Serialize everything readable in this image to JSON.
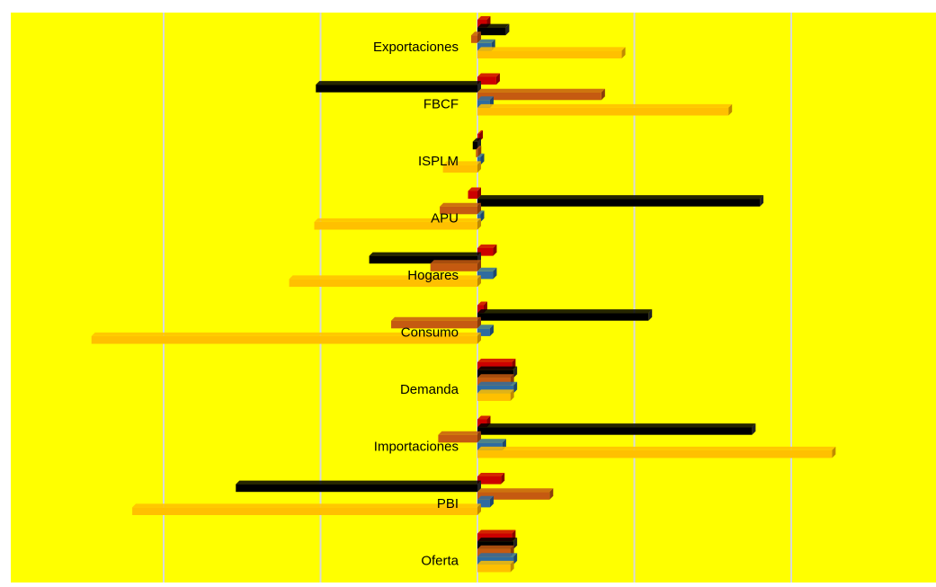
{
  "chart_data": {
    "type": "bar",
    "orientation": "horizontal",
    "style": "3d-clustered",
    "grid": "vertical lines",
    "legend": "none",
    "categories": [
      "Exportaciones",
      "FBCF",
      "ISPLM",
      "APU",
      "Hogares",
      "Consumo",
      "Demanda",
      "Importaciones",
      "PBI",
      "Oferta"
    ],
    "xlim": [
      -30,
      30
    ],
    "series": [
      {
        "color": "#cc0000",
        "side": "#880000",
        "values": [
          0.6,
          1.2,
          0.1,
          -0.6,
          1.0,
          0.4,
          2.2,
          0.6,
          1.5,
          2.2
        ]
      },
      {
        "color": "#000000",
        "side": "#222222",
        "values": [
          1.8,
          -10.3,
          -0.3,
          18.0,
          -6.9,
          10.9,
          2.3,
          17.5,
          -15.4,
          2.3
        ]
      },
      {
        "color": "#c55a11",
        "side": "#8a3d0a",
        "values": [
          -0.4,
          7.9,
          -0.1,
          -2.4,
          -3.0,
          -5.5,
          2.1,
          -2.5,
          4.6,
          2.1
        ]
      },
      {
        "color": "#2e6ca0",
        "side": "#1d4870",
        "values": [
          0.9,
          0.8,
          0.2,
          0.2,
          1.0,
          0.8,
          2.3,
          1.6,
          0.8,
          2.3
        ]
      },
      {
        "color": "#ffc000",
        "side": "#c08a00",
        "values": [
          9.2,
          16.0,
          -2.2,
          -10.4,
          -12.0,
          -24.6,
          2.1,
          22.6,
          -22.0,
          2.1
        ]
      }
    ]
  }
}
